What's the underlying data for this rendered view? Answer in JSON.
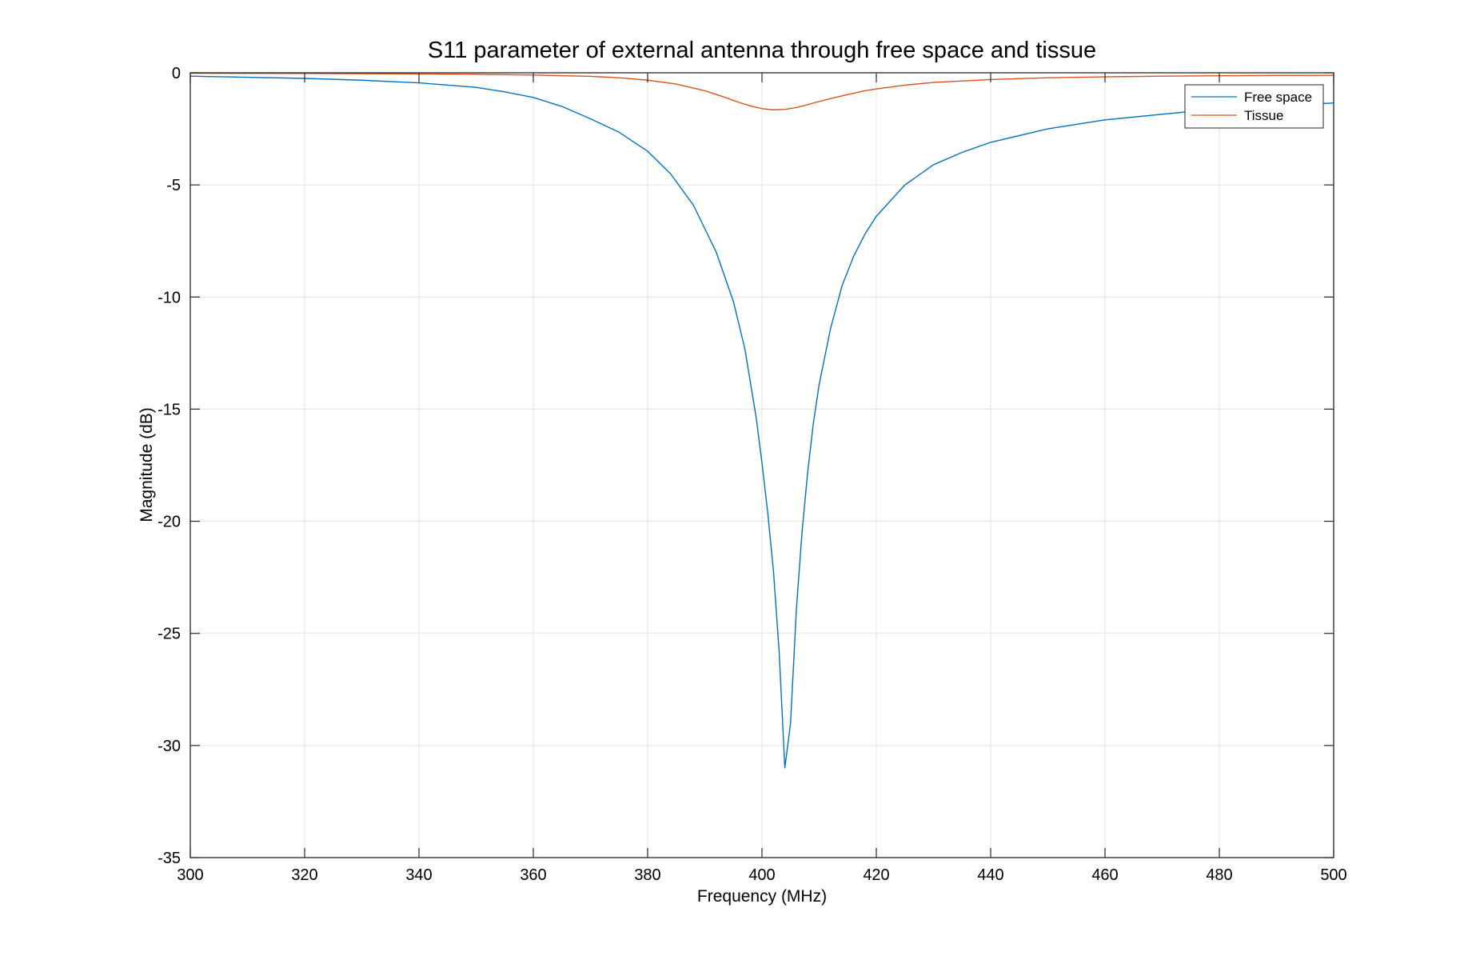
{
  "chart_data": {
    "type": "line",
    "title": "S11 parameter of external antenna through free space and tissue",
    "xlabel": "Frequency (MHz)",
    "ylabel": "Magnitude (dB)",
    "xlim": [
      300,
      500
    ],
    "ylim": [
      -35,
      0
    ],
    "xticks": [
      300,
      320,
      340,
      360,
      380,
      400,
      420,
      440,
      460,
      480,
      500
    ],
    "yticks": [
      0,
      -5,
      -10,
      -15,
      -20,
      -25,
      -30,
      -35
    ],
    "xtick_labels": [
      "300",
      "320",
      "340",
      "360",
      "380",
      "400",
      "420",
      "440",
      "460",
      "480",
      "500"
    ],
    "ytick_labels": [
      "0",
      "-5",
      "-10",
      "-15",
      "-20",
      "-25",
      "-30",
      "-35"
    ],
    "grid": true,
    "legend_position": "top-right",
    "series": [
      {
        "name": "Free space",
        "color": "#0072BD",
        "x": [
          300,
          310,
          320,
          330,
          340,
          350,
          355,
          360,
          365,
          370,
          375,
          380,
          384,
          388,
          392,
          395,
          397,
          399,
          400,
          401,
          402,
          403,
          404,
          405,
          406,
          407,
          408,
          409,
          410,
          412,
          414,
          416,
          418,
          420,
          425,
          430,
          435,
          440,
          450,
          460,
          470,
          480,
          490,
          500
        ],
        "y": [
          -0.15,
          -0.2,
          -0.25,
          -0.33,
          -0.45,
          -0.65,
          -0.85,
          -1.1,
          -1.5,
          -2.05,
          -2.65,
          -3.5,
          -4.5,
          -5.9,
          -8.0,
          -10.2,
          -12.3,
          -15.4,
          -17.4,
          -19.6,
          -22.2,
          -25.8,
          -31.0,
          -29.0,
          -24.0,
          -20.5,
          -17.8,
          -15.6,
          -13.9,
          -11.4,
          -9.5,
          -8.2,
          -7.2,
          -6.4,
          -5.0,
          -4.1,
          -3.55,
          -3.1,
          -2.5,
          -2.1,
          -1.85,
          -1.6,
          -1.45,
          -1.35
        ]
      },
      {
        "name": "Tissue",
        "color": "#D95319",
        "x": [
          300,
          320,
          340,
          350,
          360,
          370,
          375,
          380,
          385,
          390,
          393,
          396,
          398,
          400,
          402,
          404,
          406,
          408,
          410,
          412,
          415,
          418,
          420,
          425,
          430,
          440,
          450,
          460,
          470,
          480,
          490,
          500
        ],
        "y": [
          -0.02,
          -0.03,
          -0.05,
          -0.07,
          -0.1,
          -0.16,
          -0.22,
          -0.33,
          -0.5,
          -0.8,
          -1.05,
          -1.32,
          -1.48,
          -1.6,
          -1.65,
          -1.63,
          -1.55,
          -1.42,
          -1.28,
          -1.15,
          -0.97,
          -0.8,
          -0.72,
          -0.55,
          -0.43,
          -0.3,
          -0.22,
          -0.18,
          -0.15,
          -0.13,
          -0.12,
          -0.11
        ]
      }
    ]
  }
}
